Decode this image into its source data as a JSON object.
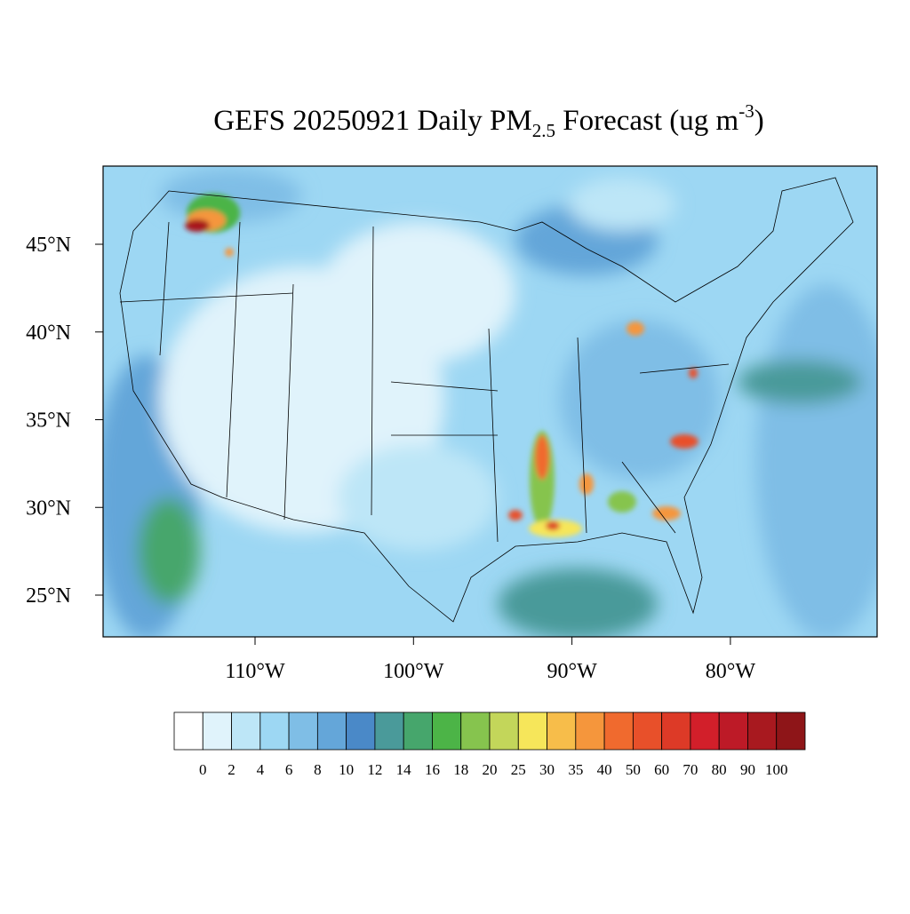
{
  "title": {
    "main": "GEFS 20250921 Daily PM",
    "sub": "2.5",
    "rest": " Forecast (ug m",
    "sup": "-3",
    "end": ")"
  },
  "map": {
    "lat_ticks": [
      {
        "value": 45,
        "label": "45°N"
      },
      {
        "value": 40,
        "label": "40°N"
      },
      {
        "value": 35,
        "label": "35°N"
      },
      {
        "value": 30,
        "label": "30°N"
      },
      {
        "value": 25,
        "label": "25°N"
      }
    ],
    "lon_ticks": [
      {
        "value": -110,
        "label": "110°W"
      },
      {
        "value": -100,
        "label": "100°W"
      },
      {
        "value": -90,
        "label": "90°W"
      },
      {
        "value": -80,
        "label": "80°W"
      }
    ]
  },
  "colorbar": {
    "levels": [
      0,
      2,
      4,
      6,
      8,
      10,
      12,
      14,
      16,
      18,
      20,
      25,
      30,
      35,
      40,
      50,
      60,
      70,
      80,
      90,
      100
    ],
    "colors": [
      "#ffffff",
      "#e0f3fb",
      "#bde6f7",
      "#9dd7f3",
      "#7fbee6",
      "#64a6d9",
      "#4a89c8",
      "#4a9a9a",
      "#46a66c",
      "#4cb447",
      "#86c44e",
      "#c3d65a",
      "#f6e65a",
      "#f7bd4a",
      "#f5963c",
      "#f06a2e",
      "#e8502a",
      "#dd3a27",
      "#d21f2a",
      "#bd1a27",
      "#a8191f",
      "#8e1518"
    ]
  }
}
